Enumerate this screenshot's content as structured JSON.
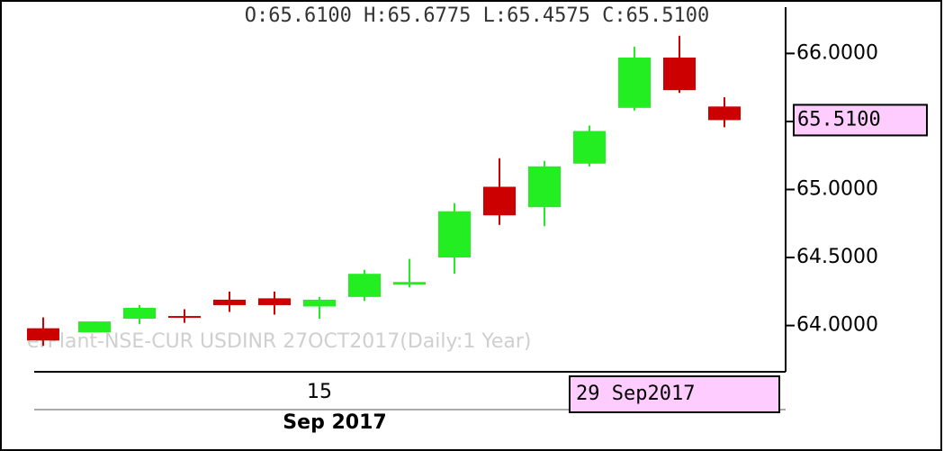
{
  "chart_data": {
    "type": "candlestick",
    "header": "O:65.6100  H:65.6775  L:65.4575  C:65.5100",
    "watermark": "erPlant-NSE-CUR USDINR 27OCT2017(Daily:1 Year)",
    "x_axis_label": "Sep 2017",
    "cursor_label": "29 Sep2017",
    "cursor_value_label": "65.5100",
    "cursor_value": 65.51,
    "categories": [
      null,
      null,
      null,
      null,
      null,
      null,
      "15",
      null,
      null,
      null,
      null,
      null,
      null,
      null,
      null,
      null
    ],
    "open": [
      63.98,
      63.95,
      64.05,
      64.07,
      64.19,
      64.2,
      64.14,
      64.21,
      64.3,
      64.5,
      65.02,
      64.87,
      65.19,
      65.6,
      65.97,
      65.61
    ],
    "high": [
      64.06,
      64.03,
      64.15,
      64.12,
      64.25,
      64.25,
      64.21,
      64.41,
      64.49,
      64.9,
      65.23,
      65.21,
      65.47,
      66.05,
      66.13,
      65.6775
    ],
    "low": [
      63.85,
      63.95,
      64.01,
      64.02,
      64.1,
      64.08,
      64.05,
      64.18,
      64.28,
      64.38,
      64.74,
      64.73,
      65.17,
      65.58,
      65.71,
      65.4575
    ],
    "close": [
      63.89,
      64.03,
      64.13,
      64.06,
      64.15,
      64.15,
      64.19,
      64.38,
      64.32,
      64.84,
      64.81,
      65.17,
      65.43,
      65.97,
      65.73,
      65.51
    ],
    "up_color": "#22ee22",
    "down_color": "#cc0000",
    "ylim": [
      63.66,
      66.34
    ],
    "yticks": [
      {
        "value": 64,
        "label": "64.0000"
      },
      {
        "value": 64.5,
        "label": "64.5000"
      },
      {
        "value": 65,
        "label": "65.0000"
      },
      {
        "value": 65.5,
        "label": "65.5000"
      },
      {
        "value": 66,
        "label": "66.0000"
      }
    ]
  }
}
